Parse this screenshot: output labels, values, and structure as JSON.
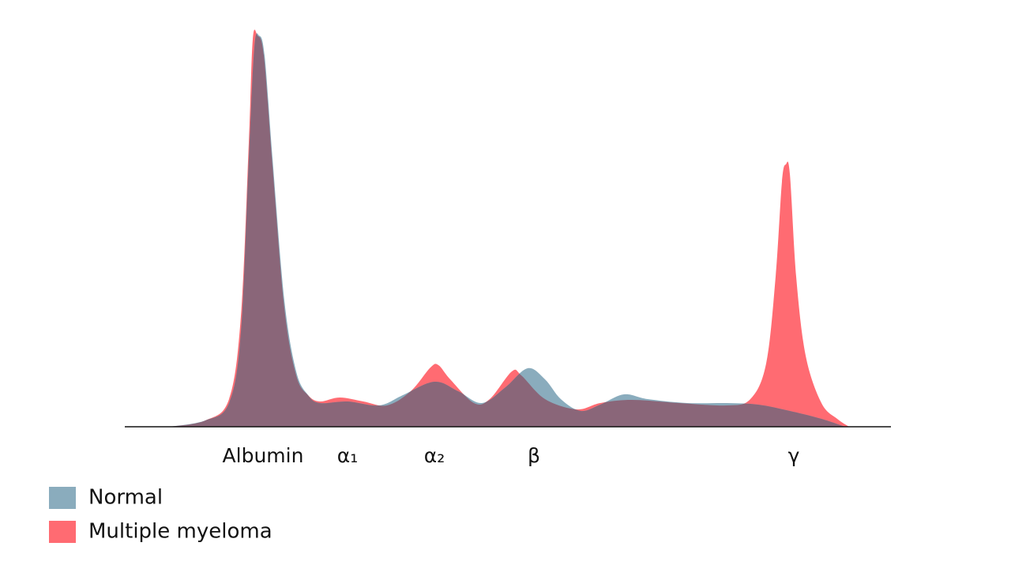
{
  "chart_data": {
    "type": "area",
    "xlim": [
      0,
      97
    ],
    "ylim": [
      0,
      100
    ],
    "xticks": [
      {
        "value": 17.5,
        "label": "Albumin"
      },
      {
        "value": 28.2,
        "label": "α₁"
      },
      {
        "value": 39.2,
        "label": "α₂"
      },
      {
        "value": 51.8,
        "label": "β"
      },
      {
        "value": 84.7,
        "label": "γ"
      }
    ],
    "legend": "bottom-left",
    "overlap_color": "#8a6679",
    "series": [
      {
        "name": "Normal",
        "color": "#8aacbd",
        "x": [
          5.7,
          10.2,
          13.2,
          14.7,
          15.7,
          16.4,
          17,
          17.7,
          18.7,
          20.2,
          21.7,
          23.2,
          24.7,
          28.2,
          32.2,
          35.2,
          39.2,
          42.2,
          45.2,
          48.2,
          51,
          53.2,
          55.2,
          57.7,
          60.2,
          63.2,
          66.2,
          71.2,
          76.2,
          80.2,
          84.2,
          88.2,
          91.2
        ],
        "values": [
          0,
          1.6,
          6,
          24,
          68,
          96,
          99,
          94,
          68,
          32,
          14,
          8,
          6,
          6.4,
          5.4,
          8,
          11.4,
          9,
          6,
          10,
          14.8,
          12,
          7,
          4,
          5.6,
          8.2,
          7,
          6,
          6,
          5.6,
          4,
          2,
          0
        ]
      },
      {
        "name": "Multiple myeloma",
        "color": "#ff6b72",
        "x": [
          5.7,
          10.2,
          13.2,
          14.7,
          15.7,
          16.2,
          16.8,
          17.6,
          18.7,
          20.2,
          21.7,
          23.2,
          24.7,
          27.2,
          30.2,
          33.2,
          36.2,
          38.7,
          39.7,
          41.2,
          44.2,
          46.2,
          49,
          50.2,
          53.2,
          57.2,
          60.2,
          64.2,
          70.2,
          76.2,
          79.2,
          81.2,
          82.4,
          83.2,
          83.7,
          84.2,
          85,
          86.2,
          88.2,
          90.2,
          91.7
        ],
        "values": [
          0,
          1.6,
          7,
          28,
          72,
          98,
          99,
          94,
          66,
          30,
          13,
          8,
          6.4,
          7.4,
          6.4,
          5.4,
          9,
          15,
          15.6,
          12,
          6,
          7,
          14,
          13,
          7,
          4.4,
          6,
          6.8,
          6,
          5.4,
          7,
          16,
          38,
          62,
          66.4,
          64,
          38,
          18,
          6,
          2,
          0
        ]
      }
    ]
  }
}
